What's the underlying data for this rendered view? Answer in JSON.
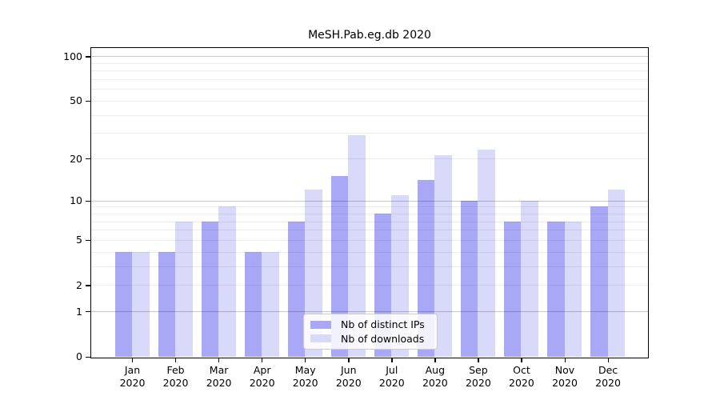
{
  "chart_data": {
    "type": "bar",
    "title": "MeSH.Pab.eg.db 2020",
    "categories": [
      {
        "month": "Jan",
        "year": "2020"
      },
      {
        "month": "Feb",
        "year": "2020"
      },
      {
        "month": "Mar",
        "year": "2020"
      },
      {
        "month": "Apr",
        "year": "2020"
      },
      {
        "month": "May",
        "year": "2020"
      },
      {
        "month": "Jun",
        "year": "2020"
      },
      {
        "month": "Jul",
        "year": "2020"
      },
      {
        "month": "Aug",
        "year": "2020"
      },
      {
        "month": "Sep",
        "year": "2020"
      },
      {
        "month": "Oct",
        "year": "2020"
      },
      {
        "month": "Nov",
        "year": "2020"
      },
      {
        "month": "Dec",
        "year": "2020"
      }
    ],
    "series": [
      {
        "name": "Nb of distinct IPs",
        "color": "#a8a8f7",
        "values": [
          4,
          4,
          7,
          4,
          7,
          15,
          8,
          14,
          10,
          7,
          7,
          9
        ]
      },
      {
        "name": "Nb of downloads",
        "color": "#d9d9f9",
        "values": [
          4,
          7,
          9,
          4,
          12,
          29,
          11,
          21,
          23,
          10,
          7,
          12
        ]
      }
    ],
    "y_scale": "log1p",
    "y_ticks": [
      0,
      1,
      2,
      5,
      10,
      20,
      50,
      100
    ],
    "ylim": [
      0,
      115
    ],
    "grid": {
      "minor_values": [
        2,
        3,
        4,
        5,
        6,
        7,
        8,
        9,
        20,
        30,
        40,
        50,
        60,
        70,
        80,
        90
      ],
      "decade_values": [
        1,
        10,
        100
      ]
    },
    "legend_position": "bottom-center"
  }
}
